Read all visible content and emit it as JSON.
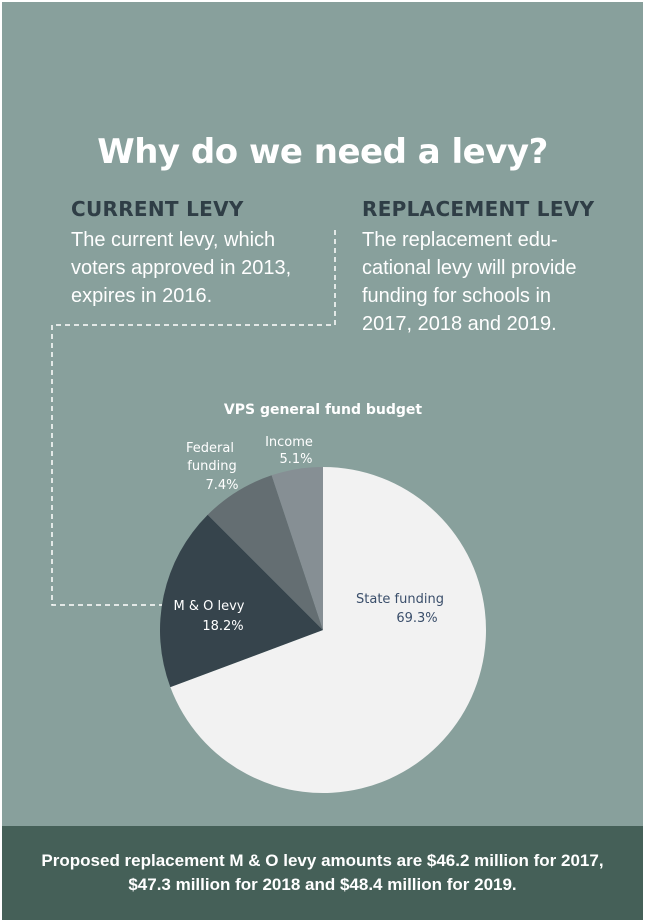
{
  "title": "Why do we need a levy?",
  "current": {
    "heading": "CURRENT LEVY",
    "lines": [
      "The current levy, which",
      "voters approved in 2013,",
      "expires in 2016."
    ]
  },
  "replacement": {
    "heading": "REPLACEMENT LEVY",
    "lines": [
      "The replacement edu-",
      "cational levy will provide",
      "funding for schools in",
      "2017, 2018 and 2019."
    ]
  },
  "chart_data": {
    "type": "pie",
    "title": "VPS general fund budget",
    "slices": [
      {
        "label": "State funding",
        "value": 69.3,
        "value_label": "69.3%",
        "color": "#f2f2f2"
      },
      {
        "label": "M & O levy",
        "value": 18.2,
        "value_label": "18.2%",
        "color": "#36444c"
      },
      {
        "label": "Federal funding",
        "value": 7.4,
        "value_label": "7.4%",
        "color": "#646e72"
      },
      {
        "label": "Income",
        "value": 5.1,
        "value_label": "5.1%",
        "color": "#868f94"
      }
    ]
  },
  "footer": {
    "line1": "Proposed replacement M & O levy amounts are $46.2 million for 2017,",
    "line2": "$47.3 million for 2018 and $48.4 million for 2019."
  },
  "colors": {
    "background": "#88a09c",
    "footer_background": "#456058",
    "heading": "#2f3e46",
    "label_dark": "#3b4f6b"
  }
}
